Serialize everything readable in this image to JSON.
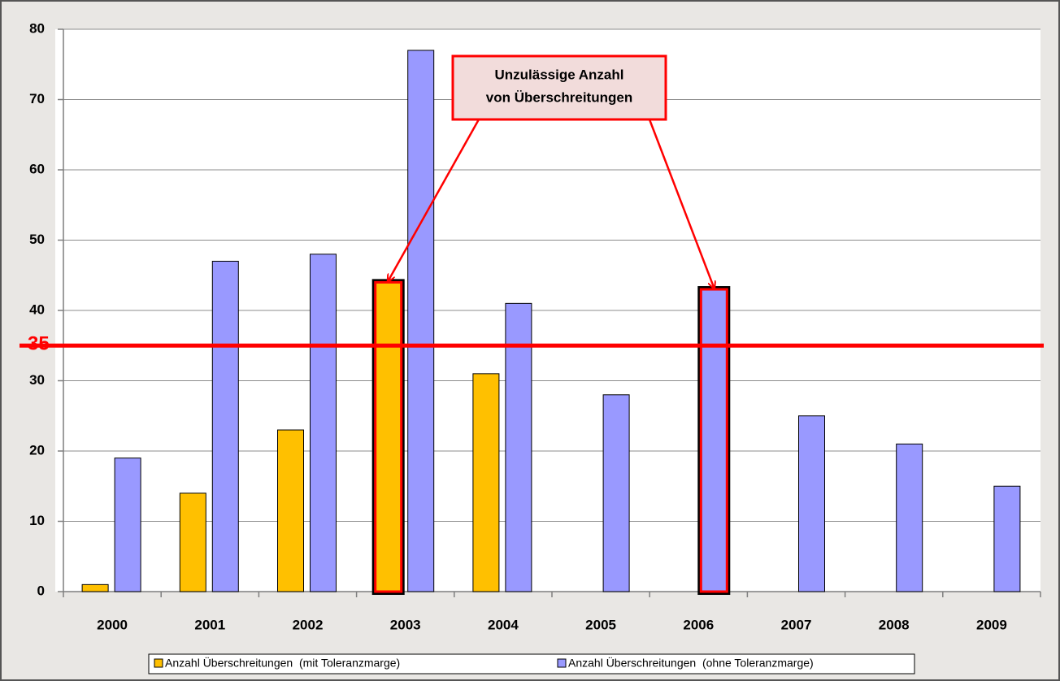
{
  "chart_data": {
    "type": "bar",
    "categories": [
      "2000",
      "2001",
      "2002",
      "2003",
      "2004",
      "2005",
      "2006",
      "2007",
      "2008",
      "2009"
    ],
    "series": [
      {
        "name": "Anzahl Überschreitungen  (mit Toleranzmarge)",
        "color": "#ffc000",
        "values": [
          1,
          14,
          23,
          44,
          31,
          null,
          null,
          null,
          null,
          null
        ]
      },
      {
        "name": "Anzahl Überschreitungen  (ohne Toleranzmarge)",
        "color": "#9999ff",
        "values": [
          19,
          47,
          48,
          77,
          41,
          28,
          43,
          25,
          21,
          15
        ]
      }
    ],
    "ylim": [
      0,
      80
    ],
    "yticks": [
      0,
      10,
      20,
      30,
      40,
      50,
      60,
      70,
      80
    ],
    "grid": true,
    "threshold": {
      "value": 35,
      "color": "#ff0000"
    },
    "annotation": [
      "Unzulässige Anzahl",
      "von Überschreitungen"
    ],
    "highlights": [
      {
        "series": 0,
        "index": 3
      },
      {
        "series": 1,
        "index": 6
      }
    ],
    "legend": "bottom"
  }
}
